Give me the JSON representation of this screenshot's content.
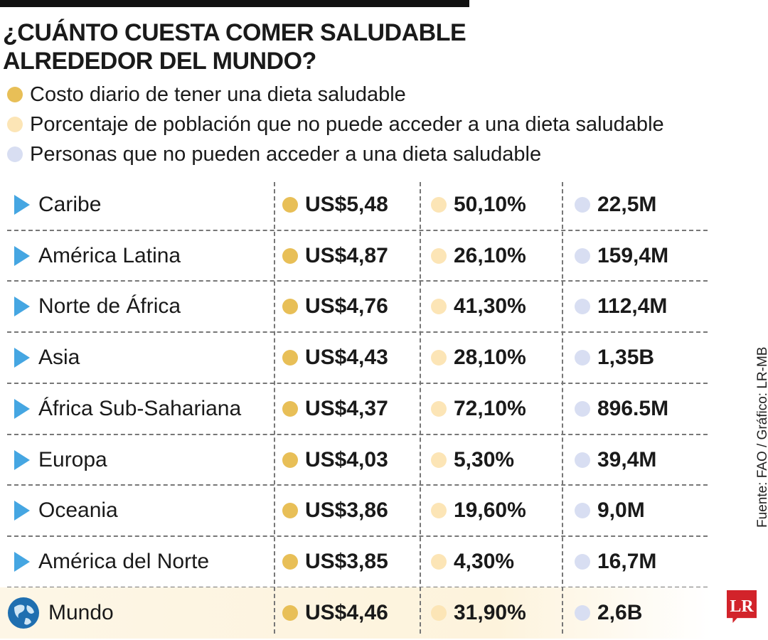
{
  "header": {
    "title": [
      "¿CUÁNTO CUESTA COMER SALUDABLE",
      "ALREDEDOR DEL MUNDO?"
    ]
  },
  "legend": [
    "Costo diario de tener una dieta saludable",
    "Porcentaje de población que no puede acceder a una dieta saludable",
    "Personas que no pueden acceder a una dieta saludable"
  ],
  "table": {
    "rows": [
      [
        "Caribe",
        "US$5,48",
        "50,10%",
        "22,5M"
      ],
      [
        "América Latina",
        "US$4,87",
        "26,10%",
        "159,4M"
      ],
      [
        "Norte de África",
        "US$4,76",
        "41,30%",
        "112,4M"
      ],
      [
        "Asia",
        "US$4,43",
        "28,10%",
        "1,35B"
      ],
      [
        "África Sub-Sahariana",
        "US$4,37",
        "72,10%",
        "896.5M"
      ],
      [
        "Europa",
        "US$4,03",
        "5,30%",
        "39,4M"
      ],
      [
        "Oceania",
        "US$3,86",
        "19,60%",
        "9,0M"
      ],
      [
        "América del Norte",
        "US$3,85",
        "4,30%",
        "16,7M"
      ],
      [
        "Mundo",
        "US$4,46",
        "31,90%",
        "2,6B"
      ]
    ]
  },
  "source": "Fuente: FAO / Gráfico: LR-MB",
  "logo": "LR"
}
